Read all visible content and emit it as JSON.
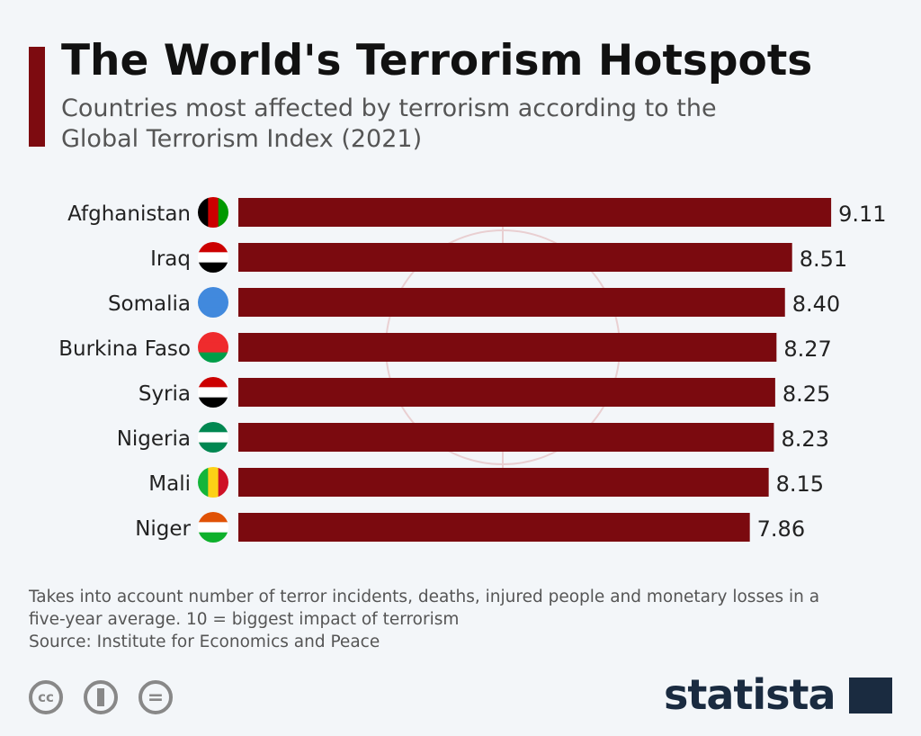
{
  "header": {
    "title": "The World's Terrorism Hotspots",
    "subtitle": "Countries most affected by terrorism according to the Global Terrorism Index (2021)"
  },
  "chart_data": {
    "type": "bar",
    "orientation": "horizontal",
    "categories": [
      "Afghanistan",
      "Iraq",
      "Somalia",
      "Burkina Faso",
      "Syria",
      "Nigeria",
      "Mali",
      "Niger"
    ],
    "values": [
      9.11,
      8.51,
      8.4,
      8.27,
      8.25,
      8.23,
      8.15,
      7.86
    ],
    "value_labels": [
      "9.11",
      "8.51",
      "8.40",
      "8.27",
      "8.25",
      "8.23",
      "8.15",
      "7.86"
    ],
    "xlim": [
      0,
      10
    ],
    "bar_color": "#7b0a0f",
    "grid": false
  },
  "footer": {
    "note": "Takes into account number of terror incidents, deaths, injured people and monetary losses in a five-year average. 10 = biggest impact of terrorism",
    "source": "Source: Institute for Economics and Peace",
    "license_icons": [
      "cc",
      "by",
      "nd"
    ],
    "cc_label": "cc",
    "nd_label": "=",
    "brand": "statista"
  }
}
